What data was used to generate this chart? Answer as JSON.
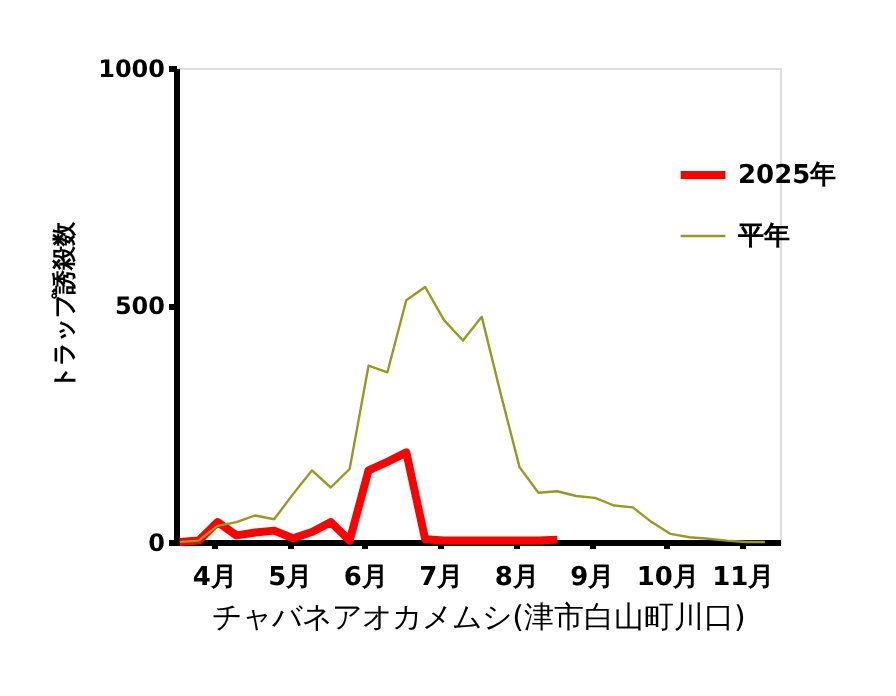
{
  "chart_data": {
    "type": "line",
    "xlabel": "チャバネアオカメムシ(津市白山町川口)",
    "ylabel": "トラップ誘殺数",
    "xlim": [
      4,
      12
    ],
    "xticks": [
      {
        "value": 4.5,
        "label": "4月"
      },
      {
        "value": 5.5,
        "label": "5月"
      },
      {
        "value": 6.5,
        "label": "6月"
      },
      {
        "value": 7.5,
        "label": "7月"
      },
      {
        "value": 8.5,
        "label": "8月"
      },
      {
        "value": 9.5,
        "label": "9月"
      },
      {
        "value": 10.5,
        "label": "10月"
      },
      {
        "value": 11.5,
        "label": "11月"
      }
    ],
    "ylim": [
      0,
      1000
    ],
    "yticks": [
      0,
      500,
      1000
    ],
    "grid": false,
    "legend": "top right",
    "x": [
      4.05,
      4.3,
      4.55,
      4.8,
      5.05,
      5.3,
      5.55,
      5.8,
      6.05,
      6.3,
      6.55,
      6.8,
      7.05,
      7.3,
      7.55,
      7.8,
      8.05,
      8.3,
      8.55,
      8.8,
      9.05,
      9.3,
      9.55,
      9.8,
      10.05,
      10.3,
      10.55,
      10.8,
      11.05,
      11.3,
      11.55,
      11.8
    ],
    "series": [
      {
        "name": "2025年",
        "color": "#ff0000",
        "values": [
          0,
          3,
          42,
          14,
          20,
          24,
          8,
          21,
          42,
          3,
          151,
          169,
          189,
          6,
          3,
          3,
          3,
          3,
          3,
          3,
          5,
          null,
          null,
          null,
          null,
          null,
          null,
          null,
          null,
          null,
          null,
          null
        ]
      },
      {
        "name": "平年",
        "color": "#999922",
        "values": [
          0,
          3,
          34,
          42,
          56,
          48,
          101,
          151,
          115,
          154,
          372,
          358,
          510,
          538,
          468,
          425,
          475,
          313,
          158,
          104,
          107,
          97,
          93,
          77,
          73,
          42,
          17,
          10,
          7,
          3,
          0,
          0
        ]
      }
    ]
  }
}
